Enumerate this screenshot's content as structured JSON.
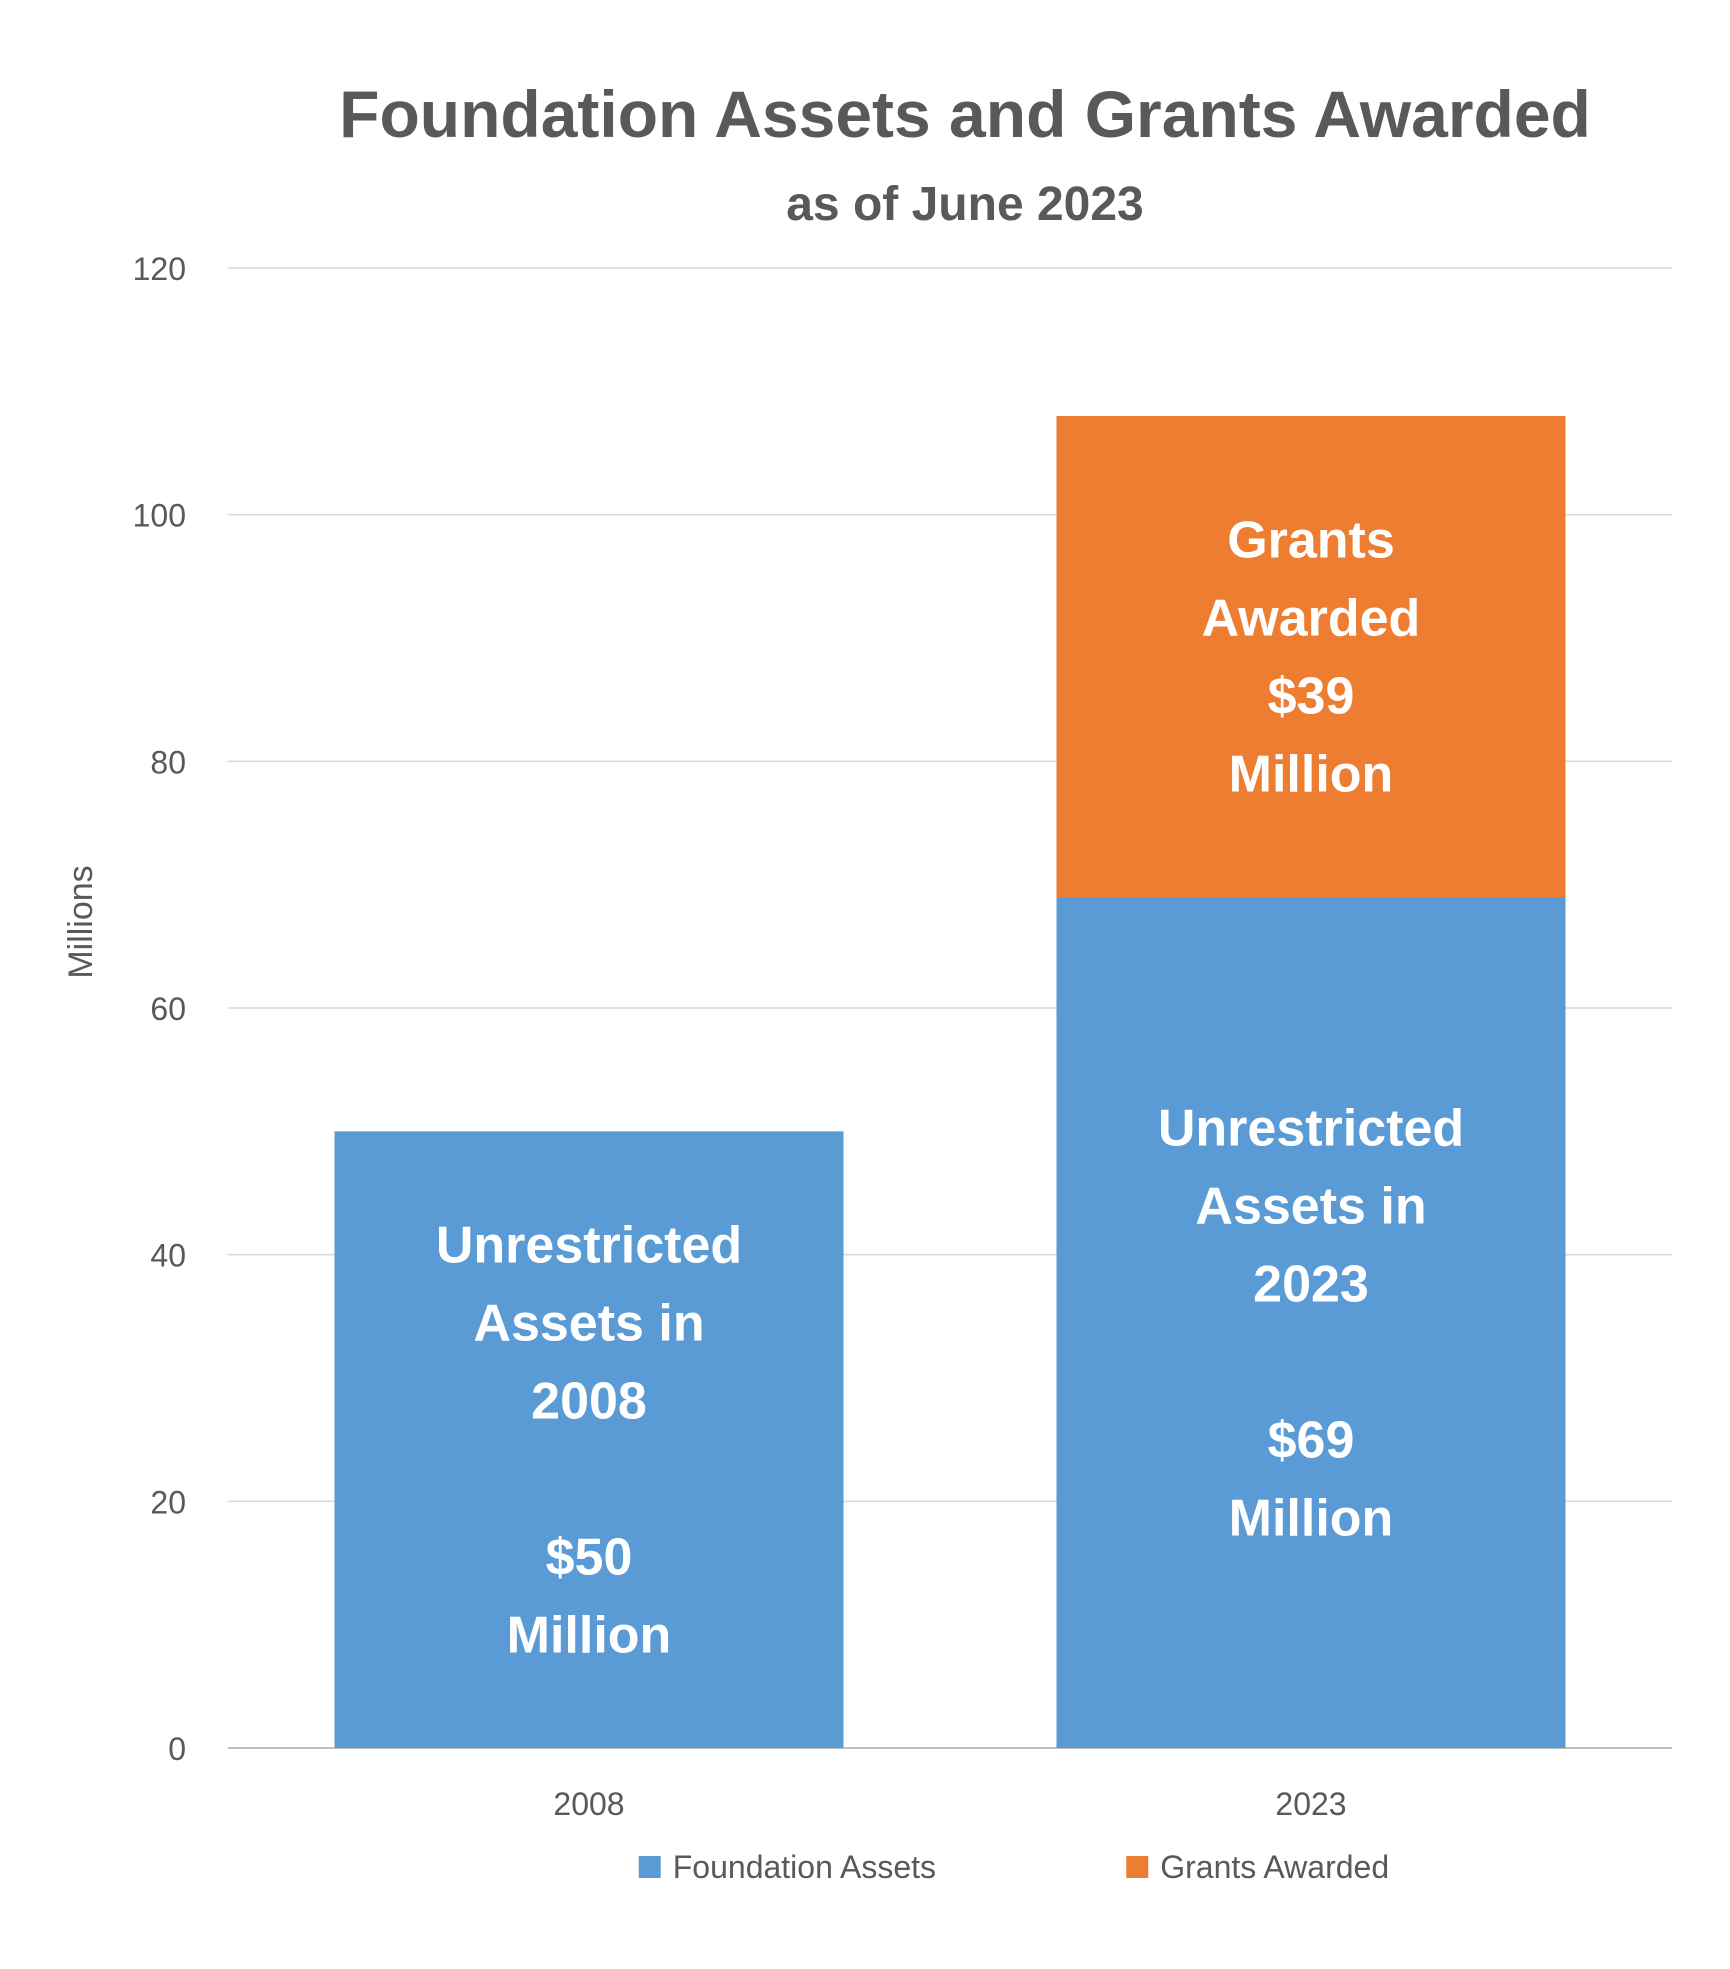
{
  "chart_data": {
    "type": "bar",
    "stacked": true,
    "title": "Foundation Assets and Grants Awarded",
    "subtitle": "as of June 2023",
    "xlabel": "",
    "ylabel": "Millions",
    "ylim": [
      0,
      120
    ],
    "yticks": [
      0,
      20,
      40,
      60,
      80,
      100,
      120
    ],
    "grid": true,
    "legend_position": "bottom",
    "categories": [
      "2008",
      "2023"
    ],
    "series": [
      {
        "name": "Foundation Assets",
        "color": "#5b9bd5",
        "values": [
          50,
          69
        ],
        "labels": [
          [
            "Unrestricted",
            "Assets in",
            "2008",
            "",
            "$50",
            "Million"
          ],
          [
            "Unrestricted",
            "Assets in",
            "2023",
            "",
            "$69",
            "Million"
          ]
        ]
      },
      {
        "name": "Grants Awarded",
        "color": "#ed7d31",
        "values": [
          0,
          39
        ],
        "labels": [
          [],
          [
            "Grants",
            "Awarded",
            "$39",
            "Million"
          ]
        ]
      }
    ]
  }
}
